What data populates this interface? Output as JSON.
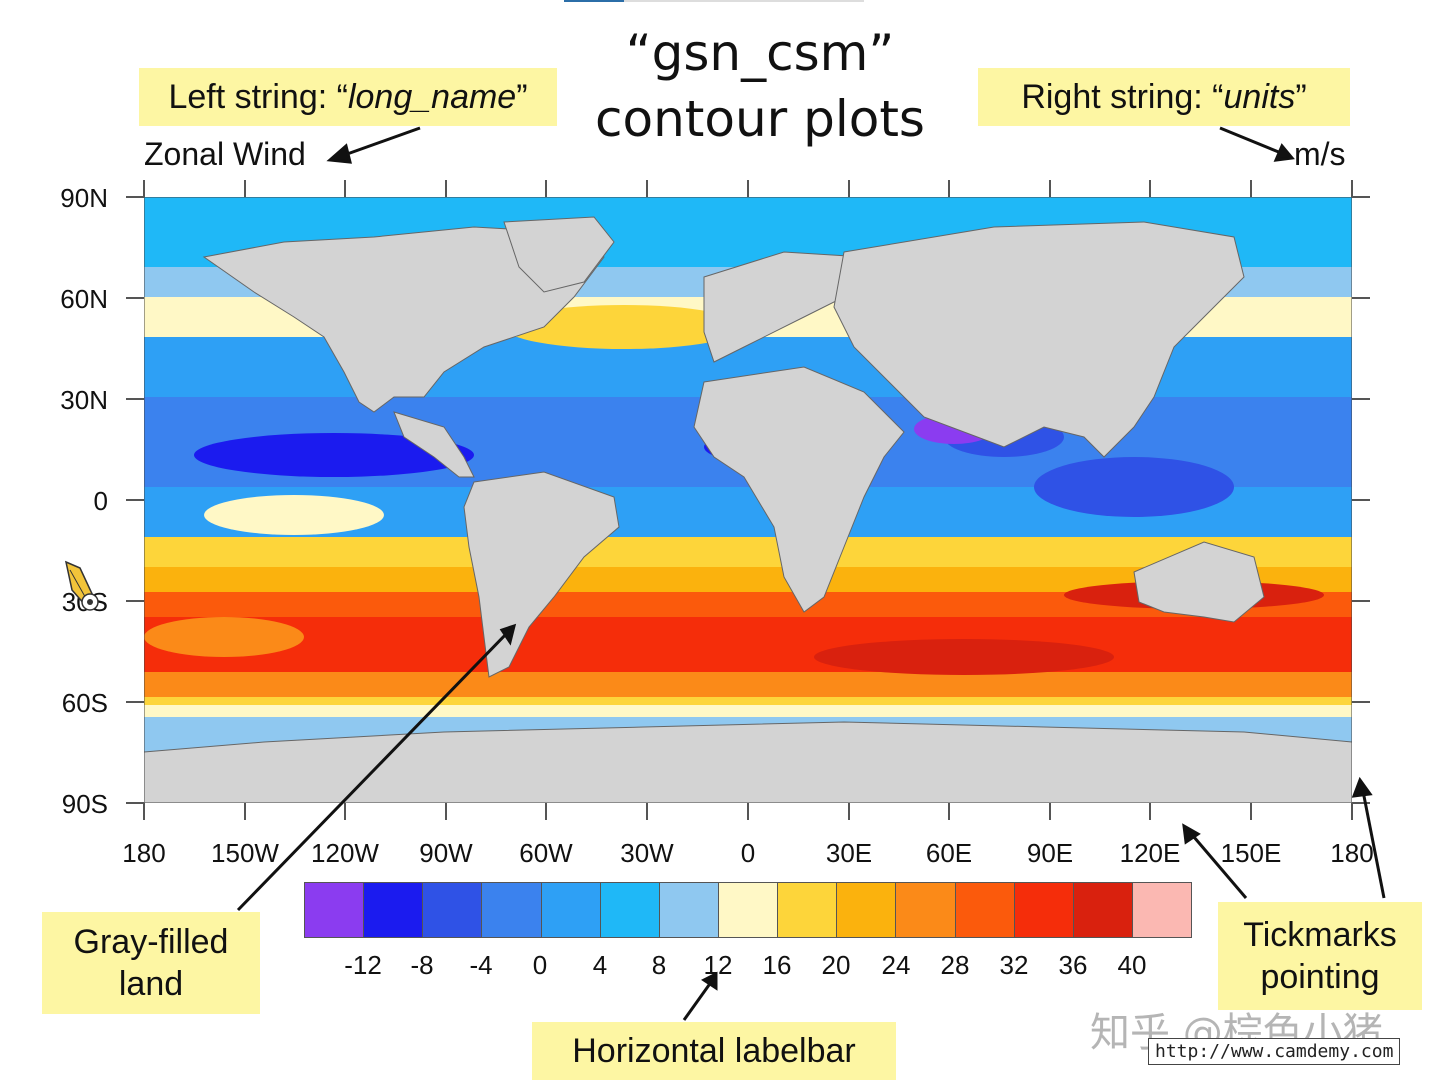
{
  "title": {
    "line1": "“gsn_csm”",
    "line2": "contour plots"
  },
  "callouts": {
    "left_string_prefix": "Left string: “",
    "left_string_value": "long_name",
    "left_string_suffix": "”",
    "right_string_prefix": "Right string: “",
    "right_string_value": "units",
    "right_string_suffix": "”",
    "gray_land_line1": "Gray-filled",
    "gray_land_line2": "land",
    "labelbar": "Horizontal labelbar",
    "tickmarks_line1": "Tickmarks",
    "tickmarks_line2": "pointing"
  },
  "plot": {
    "left_string": "Zonal Wind",
    "right_string": "m/s",
    "lat_labels": [
      "90N",
      "60N",
      "30N",
      "0",
      "30S",
      "60S",
      "90S"
    ],
    "lon_labels": [
      "180",
      "150W",
      "120W",
      "90W",
      "60W",
      "30W",
      "0",
      "30E",
      "60E",
      "90E",
      "120E",
      "150E",
      "180"
    ]
  },
  "colorbar": {
    "colors": [
      "#8b3cf0",
      "#1b1bef",
      "#2f52e6",
      "#3b82ee",
      "#2ea0f5",
      "#1fb8f7",
      "#8fc8f0",
      "#fff8c6",
      "#fdd53a",
      "#fbb20d",
      "#fb8a18",
      "#fb5a0c",
      "#f52d0a",
      "#d9210e",
      "#fbb8b2"
    ],
    "labels": [
      "-12",
      "-8",
      "-4",
      "0",
      "4",
      "8",
      "12",
      "16",
      "20",
      "24",
      "28",
      "32",
      "36",
      "40"
    ]
  },
  "watermark": {
    "text": "知乎 @棕色小猪",
    "url": "http://www.camdemy.com"
  },
  "chart_data": {
    "type": "heatmap",
    "title": "“gsn_csm” contour plots",
    "left_string": "Zonal Wind",
    "right_string": "m/s",
    "x_ticks": [
      "180",
      "150W",
      "120W",
      "90W",
      "60W",
      "30W",
      "0",
      "30E",
      "60E",
      "90E",
      "120E",
      "150E",
      "180"
    ],
    "y_ticks": [
      "90N",
      "60N",
      "30N",
      "0",
      "30S",
      "60S",
      "90S"
    ],
    "xlim": [
      -180,
      180
    ],
    "ylim": [
      -90,
      90
    ],
    "contour_levels": [
      -12,
      -8,
      -4,
      0,
      4,
      8,
      12,
      16,
      20,
      24,
      28,
      32,
      36,
      40
    ],
    "colorbar_orientation": "horizontal",
    "land_fill": "gray"
  }
}
